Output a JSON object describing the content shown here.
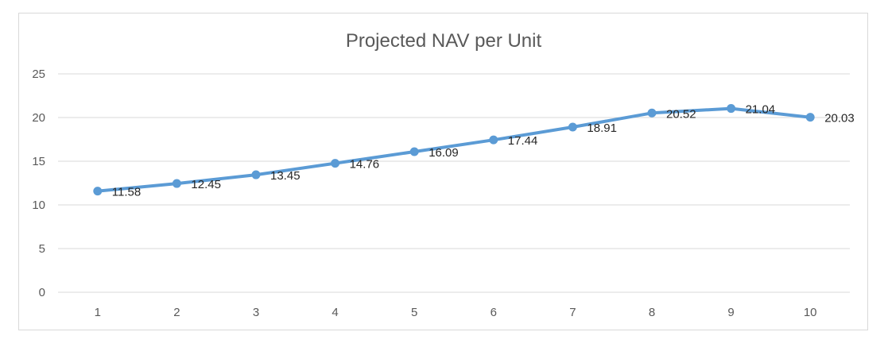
{
  "chart_data": {
    "type": "line",
    "title": "Projected NAV per Unit",
    "xlabel": "",
    "ylabel": "",
    "categories": [
      "1",
      "2",
      "3",
      "4",
      "5",
      "6",
      "7",
      "8",
      "9",
      "10"
    ],
    "series": [
      {
        "values": [
          11.58,
          12.45,
          13.45,
          14.76,
          16.09,
          17.44,
          18.91,
          20.52,
          21.04,
          20.03
        ],
        "color": "#5b9bd5"
      }
    ],
    "data_labels": [
      "11.58",
      "12.45",
      "13.45",
      "14.76",
      "16.09",
      "17.44",
      "18.91",
      "20.52",
      "21.04",
      "20.03"
    ],
    "ylim": [
      0,
      25
    ],
    "y_ticks": [
      "0",
      "5",
      "10",
      "15",
      "20",
      "25"
    ],
    "grid": "horizontal",
    "legend": "none",
    "colors": {
      "gridline": "#d9d9d9",
      "axis_text": "#595959",
      "label_text": "#262626"
    }
  }
}
